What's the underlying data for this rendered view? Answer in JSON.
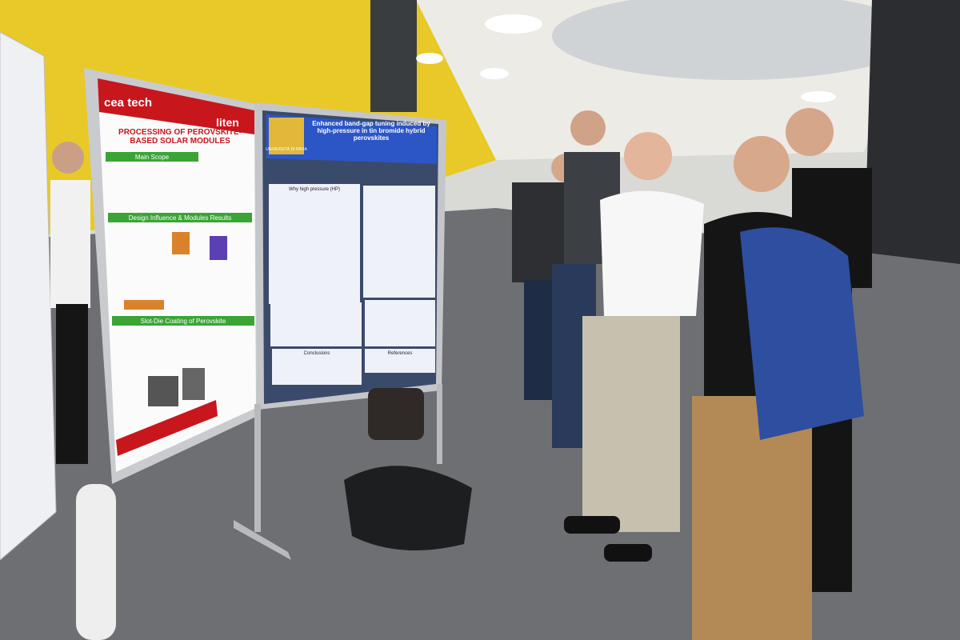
{
  "posters": [
    {
      "logos": [
        "cea tech",
        "liten"
      ],
      "title": "PROCESSING OF PEROVSKITE-BASED SOLAR MODULES",
      "sections": [
        "Main Scope",
        "Design Influence & Modules Results",
        "Slot-Die Coating of Perovskite"
      ]
    },
    {
      "logo": "UNIVERSITÀ DI PAVIA",
      "title": "Enhanced band-gap tuning induced by high-pressure in tin bromide hybrid perovskites",
      "sections": [
        "Why high pressure (HP)",
        "Conclusions",
        "References"
      ]
    }
  ]
}
